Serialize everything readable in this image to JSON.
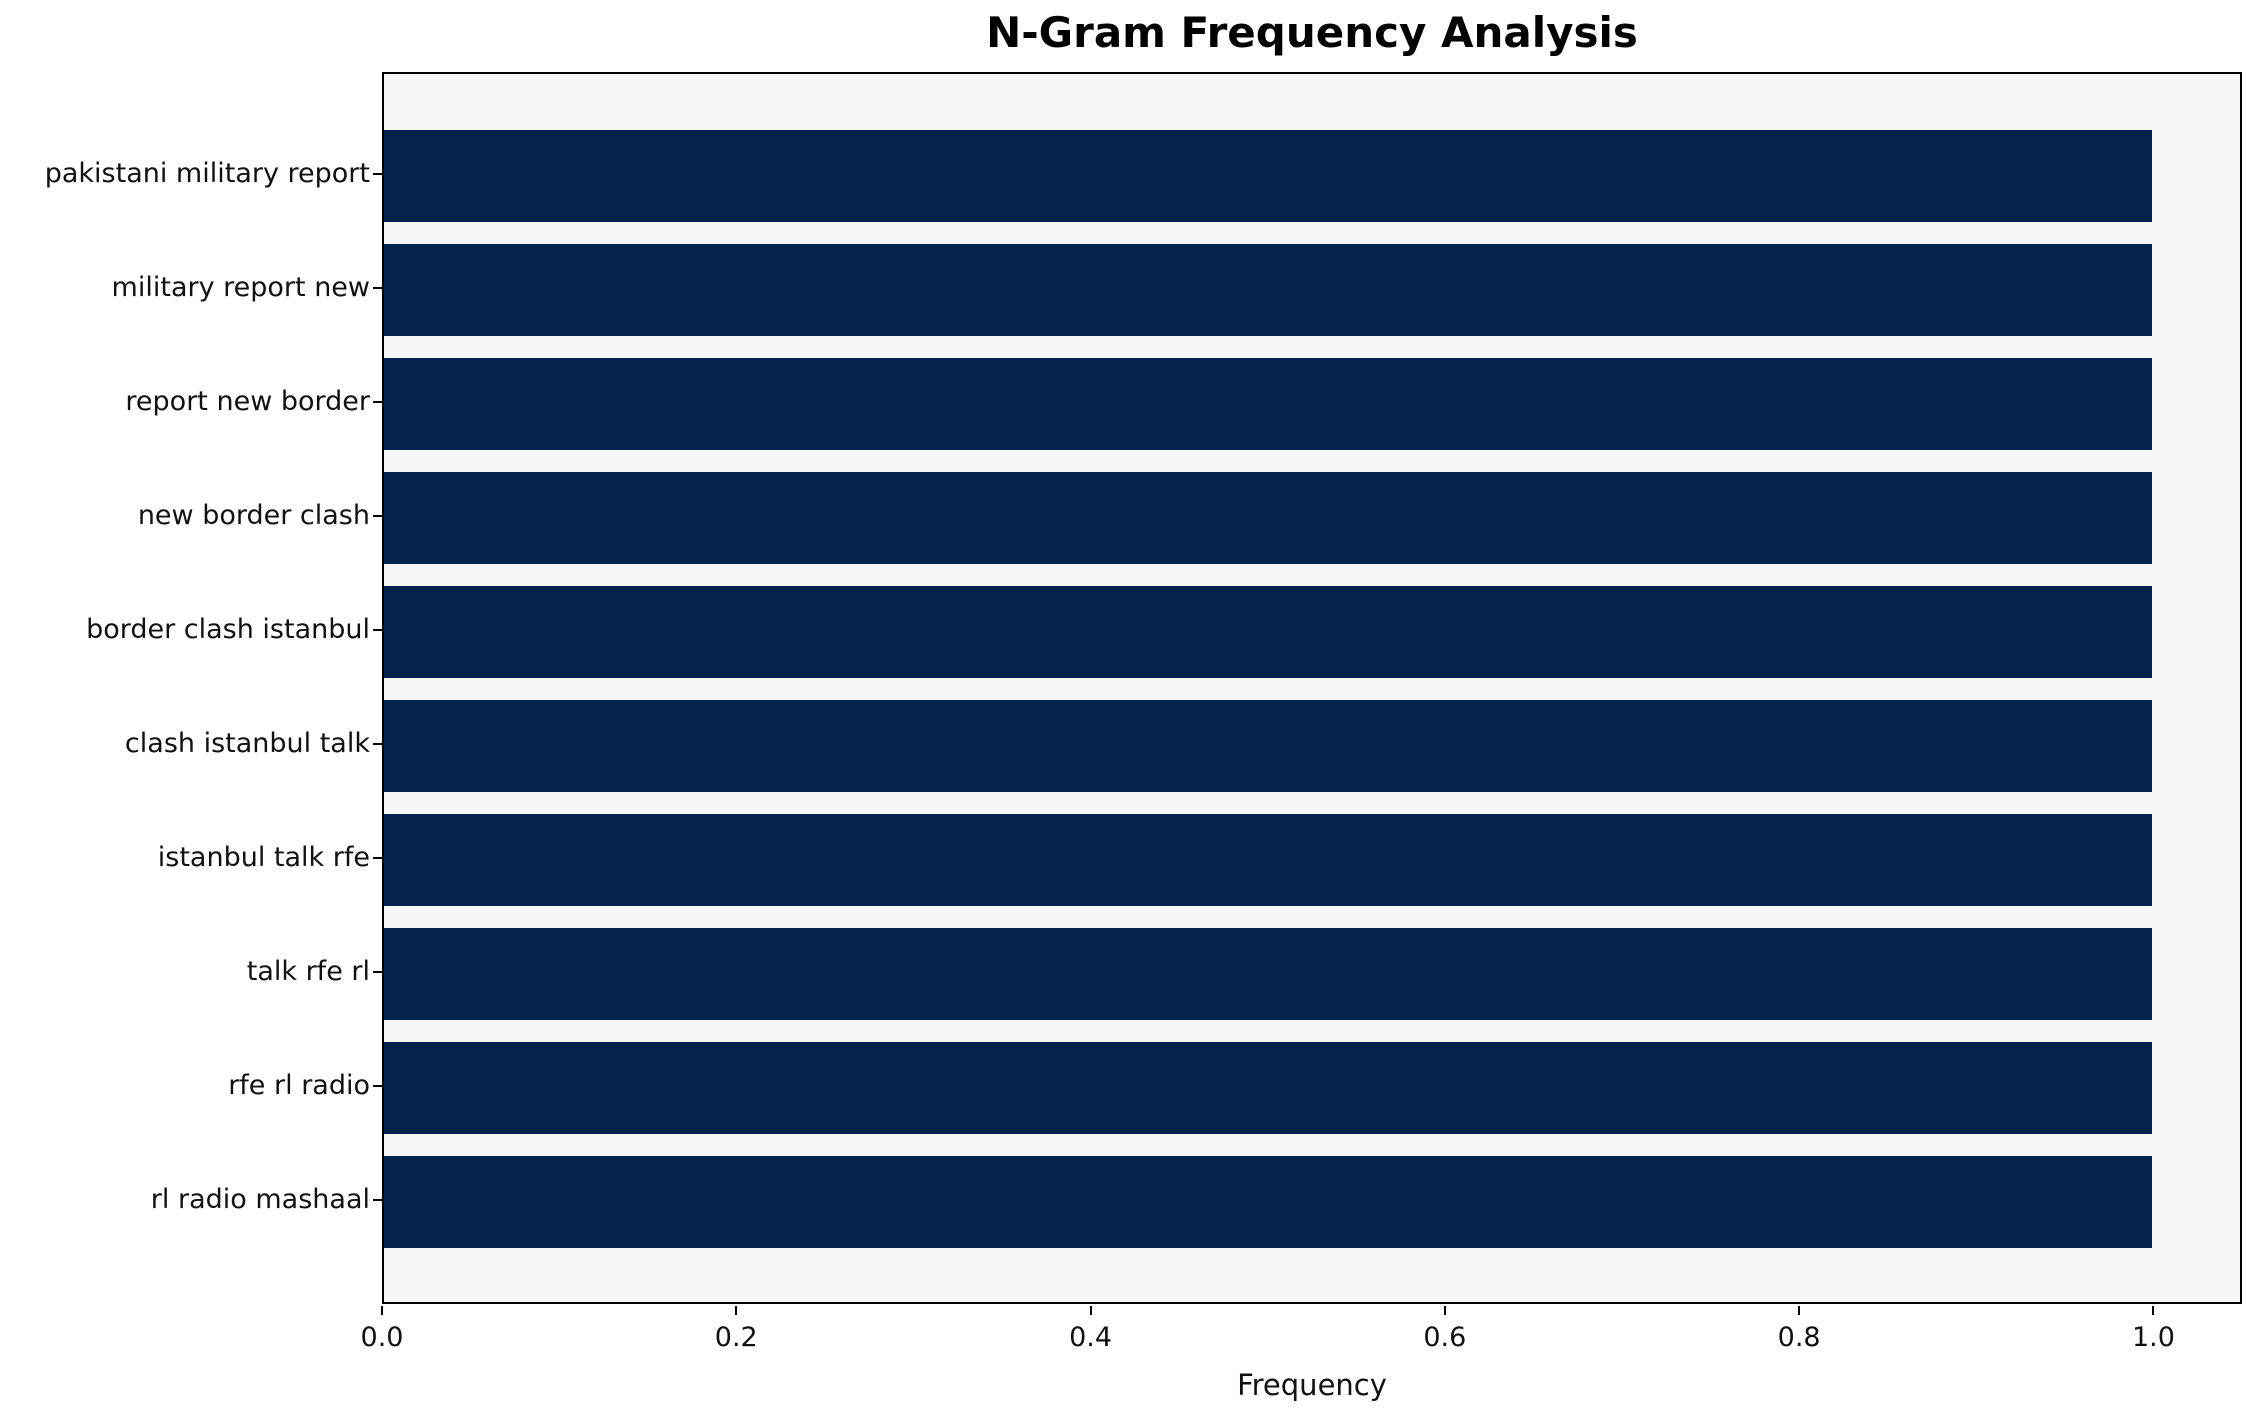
{
  "chart_data": {
    "type": "bar",
    "orientation": "horizontal",
    "title": "N-Gram Frequency Analysis",
    "xlabel": "Frequency",
    "ylabel": "",
    "categories": [
      "pakistani military report",
      "military report new",
      "report new border",
      "new border clash",
      "border clash istanbul",
      "clash istanbul talk",
      "istanbul talk rfe",
      "talk rfe rl",
      "rfe rl radio",
      "rl radio mashaal"
    ],
    "values": [
      1.0,
      1.0,
      1.0,
      1.0,
      1.0,
      1.0,
      1.0,
      1.0,
      1.0,
      1.0
    ],
    "xlim": [
      0,
      1.05
    ],
    "xticks": [
      0.0,
      0.2,
      0.4,
      0.6,
      0.8,
      1.0
    ],
    "xtick_labels": [
      "0.0",
      "0.2",
      "0.4",
      "0.6",
      "0.8",
      "1.0"
    ],
    "grid": false,
    "legend": "none",
    "bar_color": "#03234d",
    "plot_bg_color": "#f5f5f5",
    "figure_bg_color": "#ffffff"
  }
}
